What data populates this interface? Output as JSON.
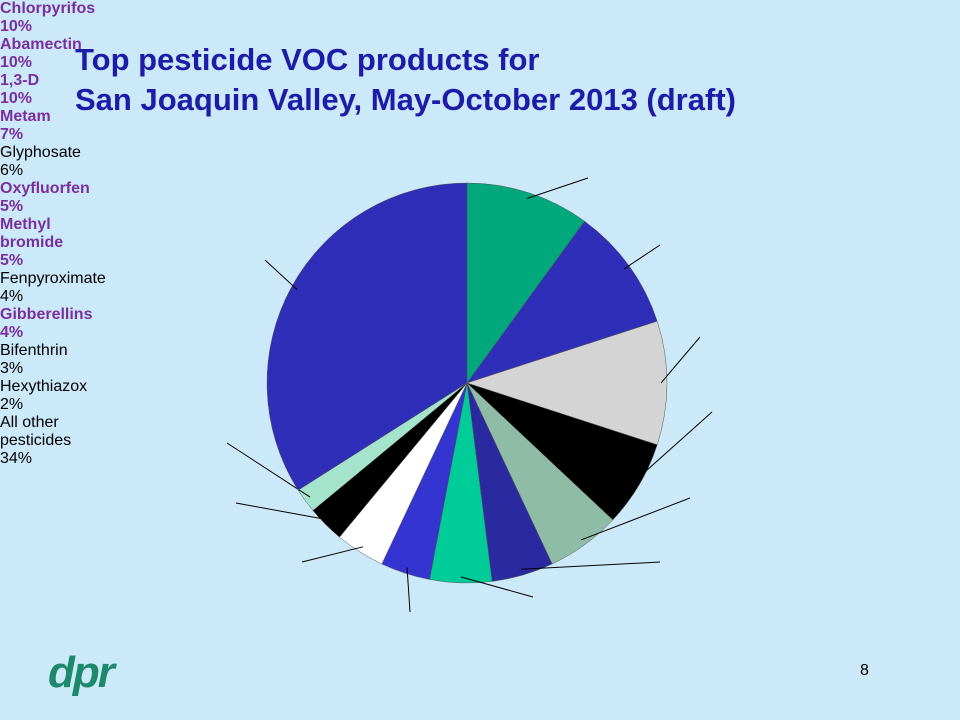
{
  "slide": {
    "title_lines": [
      "Top pesticide VOC products for",
      "San Joaquin Valley, May-October 2013 (draft)"
    ],
    "logo": "dpr",
    "page_number": "8"
  },
  "chart_data": {
    "type": "pie",
    "categories": [
      "Chlorpyrifos",
      "Abamectin",
      "1,3-D",
      "Metam",
      "Glyphosate",
      "Oxyfluorfen",
      "Methyl bromide",
      "Fenpyroximate",
      "Gibberellins",
      "Bifenthrin",
      "Hexythiazox",
      "All other pesticides"
    ],
    "values": [
      10,
      10,
      10,
      7,
      6,
      5,
      5,
      4,
      4,
      3,
      2,
      34
    ],
    "value_labels": [
      "10%",
      "10%",
      "10%",
      "7%",
      "6%",
      "5%",
      "5%",
      "4%",
      "4%",
      "3%",
      "2%",
      "34%"
    ],
    "colors": [
      "#00a87c",
      "#2e2eb8",
      "#d4d4d4",
      "#000000",
      "#8fbca6",
      "#2a2aa0",
      "#00cc99",
      "#3434d0",
      "#ffffff",
      "#000000",
      "#a4e4cc",
      "#2e2eb8"
    ],
    "label_colors": [
      "#7a2f9e",
      "#7a2f9e",
      "#7a2f9e",
      "#7a2f9e",
      "#000000",
      "#7a2f9e",
      "#7a2f9e",
      "#000000",
      "#7a2f9e",
      "#000000",
      "#000000",
      "#000000"
    ]
  }
}
